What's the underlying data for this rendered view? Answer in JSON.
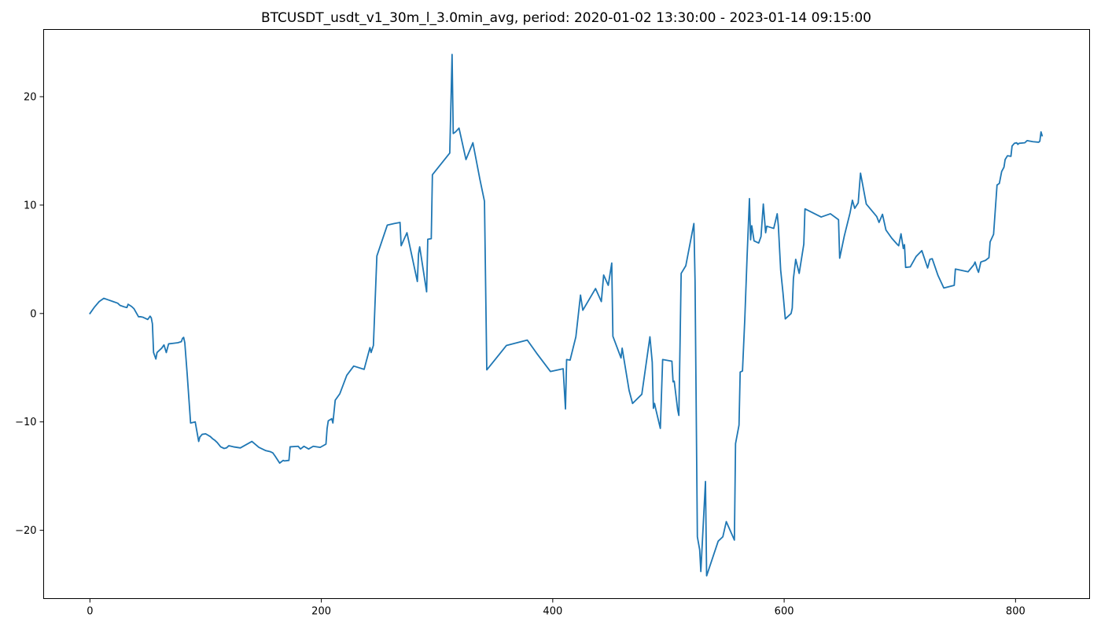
{
  "chart_data": {
    "type": "line",
    "title": "BTCUSDT_usdt_v1_30m_l_3.0min_avg, period: 2020-01-02 13:30:00 - 2023-01-14 09:15:00",
    "xlabel": "",
    "ylabel": "",
    "xlim": [
      -40,
      864
    ],
    "ylim": [
      -26.3,
      26.2
    ],
    "xticks": [
      0,
      200,
      400,
      600,
      800
    ],
    "yticks": [
      -20,
      -10,
      0,
      10,
      20
    ],
    "grid": false,
    "line_color": "#1f77b4",
    "series": [
      {
        "points": [
          [
            0,
            0.0
          ],
          [
            4,
            0.6
          ],
          [
            8,
            1.1
          ],
          [
            12,
            1.4
          ],
          [
            16,
            1.25
          ],
          [
            20,
            1.1
          ],
          [
            24,
            0.95
          ],
          [
            26,
            0.75
          ],
          [
            30,
            0.6
          ],
          [
            32,
            0.55
          ],
          [
            33,
            0.85
          ],
          [
            36,
            0.65
          ],
          [
            38,
            0.45
          ],
          [
            42,
            -0.3
          ],
          [
            44,
            -0.3
          ],
          [
            46,
            -0.35
          ],
          [
            48,
            -0.45
          ],
          [
            50,
            -0.55
          ],
          [
            52,
            -0.25
          ],
          [
            53,
            -0.4
          ],
          [
            54,
            -0.95
          ],
          [
            55,
            -3.6
          ],
          [
            57,
            -4.2
          ],
          [
            58,
            -3.6
          ],
          [
            60,
            -3.4
          ],
          [
            62,
            -3.2
          ],
          [
            64,
            -2.9
          ],
          [
            66,
            -3.6
          ],
          [
            68,
            -2.8
          ],
          [
            72,
            -2.75
          ],
          [
            76,
            -2.7
          ],
          [
            79,
            -2.6
          ],
          [
            80,
            -2.3
          ],
          [
            81,
            -2.2
          ],
          [
            82,
            -2.7
          ],
          [
            84,
            -5.5
          ],
          [
            87,
            -10.1
          ],
          [
            91,
            -10.0
          ],
          [
            94,
            -11.8
          ],
          [
            95,
            -11.4
          ],
          [
            97,
            -11.15
          ],
          [
            100,
            -11.1
          ],
          [
            104,
            -11.35
          ],
          [
            106,
            -11.55
          ],
          [
            108,
            -11.7
          ],
          [
            110,
            -11.9
          ],
          [
            113,
            -12.3
          ],
          [
            116,
            -12.45
          ],
          [
            118,
            -12.4
          ],
          [
            120,
            -12.2
          ],
          [
            124,
            -12.3
          ],
          [
            130,
            -12.4
          ],
          [
            135,
            -12.1
          ],
          [
            140,
            -11.8
          ],
          [
            146,
            -12.35
          ],
          [
            152,
            -12.65
          ],
          [
            156,
            -12.75
          ],
          [
            158,
            -12.85
          ],
          [
            160,
            -13.15
          ],
          [
            164,
            -13.8
          ],
          [
            167,
            -13.55
          ],
          [
            168,
            -13.6
          ],
          [
            172,
            -13.55
          ],
          [
            173,
            -12.3
          ],
          [
            180,
            -12.25
          ],
          [
            182,
            -12.5
          ],
          [
            185,
            -12.25
          ],
          [
            189,
            -12.5
          ],
          [
            193,
            -12.25
          ],
          [
            199,
            -12.35
          ],
          [
            204,
            -12.05
          ],
          [
            205,
            -10.6
          ],
          [
            206,
            -9.9
          ],
          [
            209,
            -9.7
          ],
          [
            210,
            -10.1
          ],
          [
            212,
            -8.0
          ],
          [
            216,
            -7.4
          ],
          [
            222,
            -5.7
          ],
          [
            228,
            -4.85
          ],
          [
            237,
            -5.15
          ],
          [
            242,
            -3.15
          ],
          [
            243,
            -3.6
          ],
          [
            245,
            -2.95
          ],
          [
            248,
            5.3
          ],
          [
            257,
            8.15
          ],
          [
            263,
            8.3
          ],
          [
            268,
            8.4
          ],
          [
            269,
            6.25
          ],
          [
            274,
            7.45
          ],
          [
            283,
            2.95
          ],
          [
            284,
            5.5
          ],
          [
            285,
            6.15
          ],
          [
            291,
            2.0
          ],
          [
            292,
            6.85
          ],
          [
            295,
            6.9
          ],
          [
            296,
            12.8
          ],
          [
            311,
            14.8
          ],
          [
            313,
            23.9
          ],
          [
            314,
            16.6
          ],
          [
            316,
            16.75
          ],
          [
            319,
            17.1
          ],
          [
            325,
            14.2
          ],
          [
            331,
            15.75
          ],
          [
            337,
            12.4
          ],
          [
            341,
            10.35
          ],
          [
            343,
            -5.2
          ],
          [
            360,
            -2.95
          ],
          [
            378,
            -2.45
          ],
          [
            386,
            -3.65
          ],
          [
            398,
            -5.35
          ],
          [
            409,
            -5.1
          ],
          [
            411,
            -8.8
          ],
          [
            412,
            -4.25
          ],
          [
            415,
            -4.3
          ],
          [
            420,
            -2.15
          ],
          [
            424,
            1.7
          ],
          [
            426,
            0.3
          ],
          [
            437,
            2.3
          ],
          [
            442,
            1.1
          ],
          [
            444,
            3.55
          ],
          [
            448,
            2.6
          ],
          [
            451,
            4.65
          ],
          [
            452,
            -2.1
          ],
          [
            459,
            -4.1
          ],
          [
            460,
            -3.2
          ],
          [
            466,
            -7.1
          ],
          [
            469,
            -8.3
          ],
          [
            477,
            -7.45
          ],
          [
            484,
            -2.15
          ],
          [
            486,
            -4.5
          ],
          [
            487,
            -8.75
          ],
          [
            488,
            -8.3
          ],
          [
            489,
            -8.8
          ],
          [
            493,
            -10.6
          ],
          [
            495,
            -4.25
          ],
          [
            503,
            -4.4
          ],
          [
            504,
            -6.3
          ],
          [
            505,
            -6.25
          ],
          [
            508,
            -8.9
          ],
          [
            509,
            -9.4
          ],
          [
            510,
            -3.0
          ],
          [
            511,
            3.7
          ],
          [
            515,
            4.4
          ],
          [
            522,
            8.3
          ],
          [
            523,
            3.0
          ],
          [
            525,
            -20.6
          ],
          [
            527,
            -21.8
          ],
          [
            528,
            -23.8
          ],
          [
            532,
            -15.5
          ],
          [
            533,
            -24.2
          ],
          [
            543,
            -21.0
          ],
          [
            547,
            -20.6
          ],
          [
            550,
            -19.2
          ],
          [
            557,
            -20.9
          ],
          [
            558,
            -12.0
          ],
          [
            561,
            -10.3
          ],
          [
            562,
            -5.4
          ],
          [
            564,
            -5.3
          ],
          [
            566,
            -0.5
          ],
          [
            568,
            5.3
          ],
          [
            570,
            10.6
          ],
          [
            571,
            6.8
          ],
          [
            572,
            8.1
          ],
          [
            574,
            6.7
          ],
          [
            578,
            6.5
          ],
          [
            580,
            7.1
          ],
          [
            582,
            10.1
          ],
          [
            584,
            7.45
          ],
          [
            585,
            8.05
          ],
          [
            591,
            7.85
          ],
          [
            594,
            9.2
          ],
          [
            595,
            8.1
          ],
          [
            597,
            4.0
          ],
          [
            599,
            1.9
          ],
          [
            601,
            -0.5
          ],
          [
            606,
            0.0
          ],
          [
            607,
            0.5
          ],
          [
            608,
            3.2
          ],
          [
            610,
            5.0
          ],
          [
            613,
            3.7
          ],
          [
            617,
            6.4
          ],
          [
            618,
            9.65
          ],
          [
            632,
            8.9
          ],
          [
            640,
            9.2
          ],
          [
            647,
            8.65
          ],
          [
            648,
            5.1
          ],
          [
            652,
            7.15
          ],
          [
            657,
            9.3
          ],
          [
            659,
            10.45
          ],
          [
            661,
            9.7
          ],
          [
            664,
            10.2
          ],
          [
            666,
            12.95
          ],
          [
            671,
            10.1
          ],
          [
            680,
            8.95
          ],
          [
            682,
            8.4
          ],
          [
            685,
            9.15
          ],
          [
            688,
            7.7
          ],
          [
            693,
            6.95
          ],
          [
            698,
            6.35
          ],
          [
            699,
            6.25
          ],
          [
            701,
            7.35
          ],
          [
            703,
            6.0
          ],
          [
            704,
            6.35
          ],
          [
            705,
            4.25
          ],
          [
            709,
            4.3
          ],
          [
            714,
            5.25
          ],
          [
            719,
            5.8
          ],
          [
            724,
            4.2
          ],
          [
            726,
            5.0
          ],
          [
            728,
            5.05
          ],
          [
            733,
            3.5
          ],
          [
            738,
            2.35
          ],
          [
            747,
            2.6
          ],
          [
            748,
            4.1
          ],
          [
            759,
            3.85
          ],
          [
            764,
            4.5
          ],
          [
            765,
            4.75
          ],
          [
            767,
            4.05
          ],
          [
            768,
            3.8
          ],
          [
            770,
            4.75
          ],
          [
            774,
            4.9
          ],
          [
            777,
            5.15
          ],
          [
            778,
            6.6
          ],
          [
            781,
            7.3
          ],
          [
            784,
            11.85
          ],
          [
            786,
            12.0
          ],
          [
            788,
            13.1
          ],
          [
            790,
            13.5
          ],
          [
            791,
            14.2
          ],
          [
            793,
            14.55
          ],
          [
            796,
            14.5
          ],
          [
            797,
            15.45
          ],
          [
            799,
            15.7
          ],
          [
            801,
            15.75
          ],
          [
            802,
            15.6
          ],
          [
            803,
            15.7
          ],
          [
            808,
            15.75
          ],
          [
            810,
            15.95
          ],
          [
            815,
            15.85
          ],
          [
            820,
            15.8
          ],
          [
            821,
            15.9
          ],
          [
            822,
            16.75
          ],
          [
            823,
            16.4
          ]
        ]
      }
    ]
  }
}
